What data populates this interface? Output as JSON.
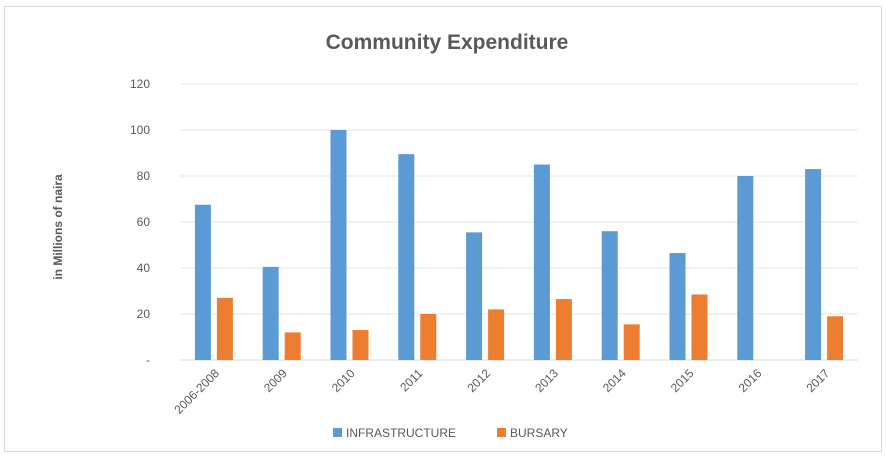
{
  "chart_data": {
    "type": "bar",
    "title": "Community Expenditure",
    "ylabel": "in Millions of naira",
    "xlabel": "",
    "categories": [
      "2006-2008",
      "2009",
      "2010",
      "2011",
      "2012",
      "2013",
      "2014",
      "2015",
      "2016",
      "2017"
    ],
    "series": [
      {
        "name": "INFRASTRUCTURE",
        "color": "#5b9bd5",
        "values": [
          67.5,
          40.5,
          100,
          89.5,
          55.5,
          85,
          56,
          46.5,
          80,
          83
        ]
      },
      {
        "name": "BURSARY",
        "color": "#ed7d31",
        "values": [
          27,
          12,
          13,
          20,
          22,
          26.5,
          15.5,
          28.5,
          0,
          19
        ]
      }
    ],
    "ylim": [
      0,
      120
    ],
    "yticks": [
      0,
      20,
      40,
      60,
      80,
      100,
      120
    ],
    "ytick_labels": [
      "-",
      "20",
      "40",
      "60",
      "80",
      "100",
      "120"
    ],
    "grid": true,
    "legend_position": "bottom"
  }
}
